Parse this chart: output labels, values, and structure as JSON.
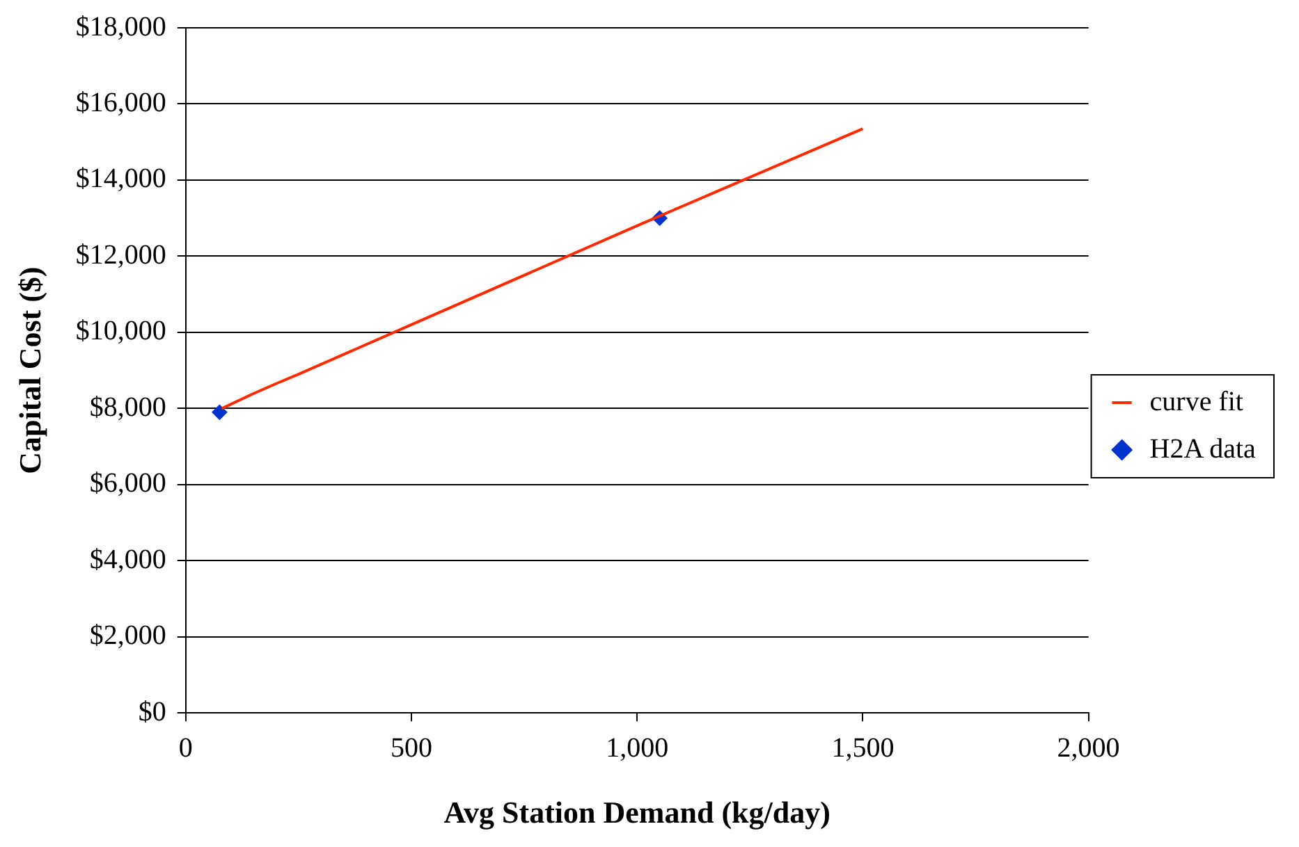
{
  "chart_data": {
    "type": "scatter",
    "xlabel": "Avg Station Demand (kg/day)",
    "ylabel": "Capital Cost ($)",
    "xlim": [
      0,
      2000
    ],
    "xticks": [
      0,
      500,
      {
        "value": 1000,
        "label": "1,000"
      },
      {
        "value": 1500,
        "label": "1,500"
      },
      {
        "value": 2000,
        "label": "2,000"
      }
    ],
    "ylim": [
      0,
      18000
    ],
    "yticks": [
      {
        "value": 0,
        "label": "$0"
      },
      {
        "value": 2000,
        "label": "$2,000"
      },
      {
        "value": 4000,
        "label": "$4,000"
      },
      {
        "value": 6000,
        "label": "$6,000"
      },
      {
        "value": 8000,
        "label": "$8,000"
      },
      {
        "value": 10000,
        "label": "$10,000"
      },
      {
        "value": 12000,
        "label": "$12,000"
      },
      {
        "value": 14000,
        "label": "$14,000"
      },
      {
        "value": 16000,
        "label": "$16,000"
      },
      {
        "value": 18000,
        "label": "$18,000"
      }
    ],
    "grid": "y",
    "legend": "right",
    "series": [
      {
        "name": "curve fit",
        "type": "line",
        "color": "#ff2a00",
        "marker": "none",
        "x": [
          80,
          150,
          200,
          250,
          500,
          1000,
          1500
        ],
        "values": [
          8000,
          8390,
          8650,
          8900,
          10200,
          12800,
          15350
        ]
      },
      {
        "name": "H2A data",
        "type": "scatter",
        "color": "#0033cc",
        "marker": "diamond",
        "x": [
          75,
          1050
        ],
        "values": [
          7900,
          13000
        ]
      }
    ]
  }
}
